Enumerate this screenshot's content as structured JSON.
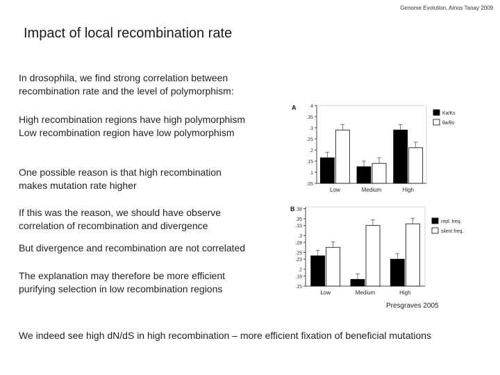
{
  "header": "Genome Evolution. Amos Tanay 2009",
  "title": "Impact of local recombination rate",
  "paragraphs": [
    {
      "lines": [
        "In drosophila, we find strong correlation between",
        "recombination rate and the level of polymorphism:"
      ]
    },
    {
      "lines": [
        "High recombination regions have high polymorphism",
        "Low recombination region have low polymorphism"
      ]
    },
    {
      "lines": [
        "One possible reason is that high recombination",
        "makes mutation rate higher"
      ]
    },
    {
      "lines": [
        "If this was the reason, we should have observe",
        "correlation of recombination and divergence"
      ]
    },
    {
      "lines": [
        " But divergence and recombination are not correlated"
      ]
    },
    {
      "lines": [
        "The explanation may therefore be more efficient",
        "purifying selection in low recombination regions"
      ]
    }
  ],
  "credit": "Presgraves 2005",
  "footer": "We indeed see high dN/dS in high recombination – more efficient fixation of beneficial mutations",
  "chart_data": [
    {
      "type": "bar",
      "panel_label": "A",
      "categories": [
        "Low",
        "Medium",
        "High"
      ],
      "series": [
        {
          "name": "Ka/Ks",
          "color": "#000000",
          "values": [
            0.165,
            0.125,
            0.29
          ]
        },
        {
          "name": "θa/θs",
          "color": "#ffffff",
          "values": [
            0.29,
            0.14,
            0.21
          ]
        }
      ],
      "yticks": [
        ".05",
        ".1",
        ".15",
        ".2",
        ".25",
        ".3",
        ".35",
        ".4"
      ],
      "ylim": [
        0.05,
        0.4
      ],
      "legend_labels": [
        "Ka/Ks",
        "θa/θs"
      ]
    },
    {
      "type": "bar",
      "panel_label": "B",
      "categories": [
        "Low",
        "Medium",
        "High"
      ],
      "series": [
        {
          "name": "repl. freq.",
          "color": "#000000",
          "values": [
            0.24,
            0.17,
            0.23
          ]
        },
        {
          "name": "silent freq.",
          "color": "#ffffff",
          "values": [
            0.265,
            0.33,
            0.335
          ]
        }
      ],
      "yticks": [
        ".15",
        ".18",
        ".2",
        ".23",
        ".25",
        ".28",
        ".3",
        ".33",
        ".35",
        ".38"
      ],
      "ylim": [
        0.15,
        0.385
      ],
      "legend_labels": [
        "repl. freq.",
        "silent freq."
      ]
    }
  ]
}
